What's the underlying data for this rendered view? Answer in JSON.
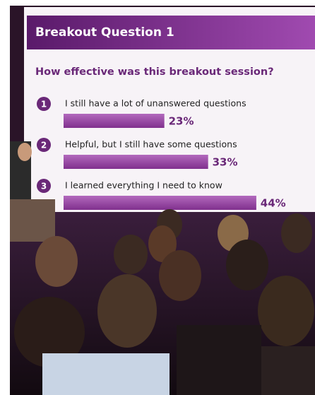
{
  "chart_data": {
    "type": "bar",
    "orientation": "horizontal",
    "title": "Breakout Question 1",
    "subtitle": "How effective was this breakout session?",
    "markers": [
      "1",
      "2",
      "3"
    ],
    "categories": [
      "I still have a lot of unanswered questions",
      "Helpful, but I still have some questions",
      "I learned everything I need to know"
    ],
    "values": [
      23,
      33,
      44
    ],
    "value_labels": [
      "23%",
      "33%",
      "44%"
    ],
    "color": "#8e3d9a"
  }
}
